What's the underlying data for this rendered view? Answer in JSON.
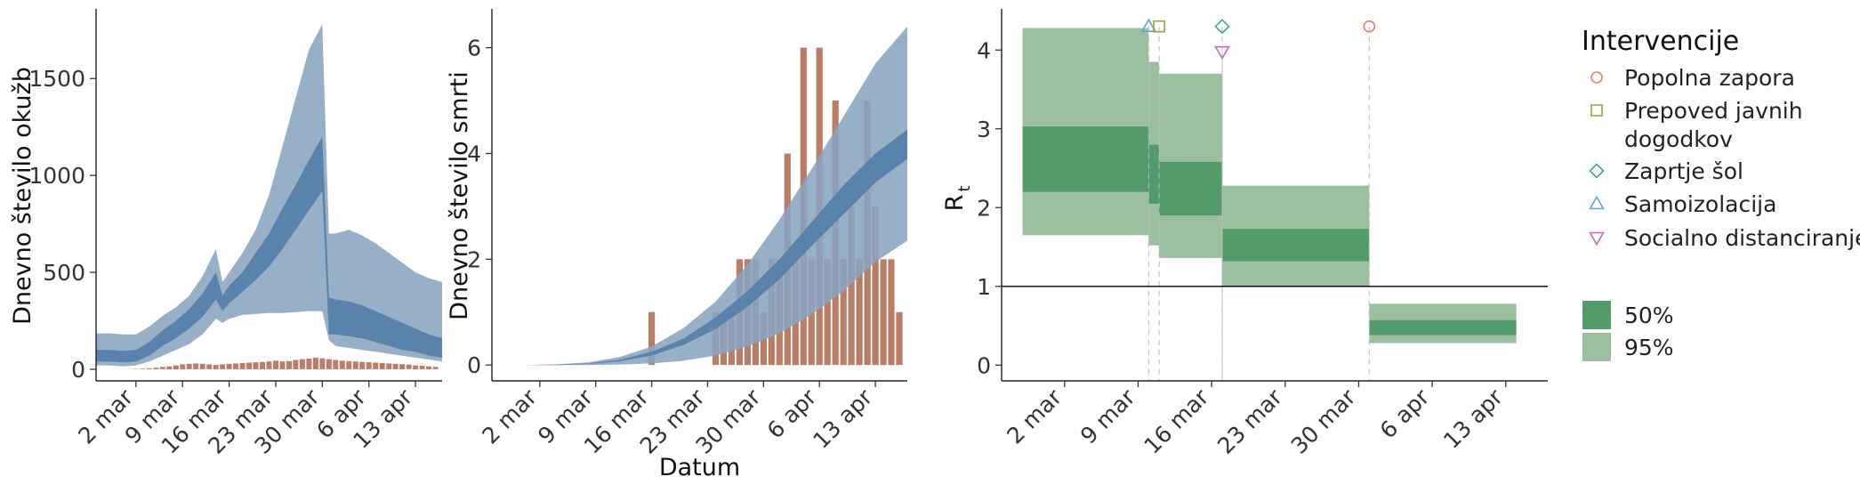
{
  "chart_data": [
    {
      "type": "area",
      "ylabel": "Dnevno število okužb",
      "xlabel": "",
      "xticks": [
        "2 mar",
        "9 mar",
        "16 mar",
        "23 mar",
        "30 mar",
        "6 apr",
        "13 apr"
      ],
      "yticks": [
        "0",
        "500",
        "1000",
        "1500"
      ],
      "ylim": [
        -60,
        1850
      ],
      "x_range_days": [
        -6,
        46
      ],
      "colors": {
        "band95": "#8aa4c0",
        "band50": "#527ea6",
        "bars": "#b97d68"
      },
      "series": [
        {
          "x": [
            -6,
            -4,
            -2,
            0,
            2,
            4,
            6,
            8,
            10,
            12,
            13,
            14,
            16,
            18,
            20,
            22,
            24,
            26,
            28,
            29,
            30,
            32,
            34,
            36,
            38,
            40,
            42,
            44,
            46
          ],
          "lower95": [
            20,
            20,
            15,
            20,
            40,
            70,
            100,
            130,
            180,
            260,
            240,
            260,
            280,
            285,
            290,
            290,
            295,
            300,
            300,
            150,
            120,
            110,
            100,
            90,
            80,
            70,
            60,
            50,
            40
          ],
          "upper95": [
            185,
            185,
            180,
            180,
            220,
            275,
            320,
            380,
            480,
            620,
            450,
            500,
            600,
            720,
            900,
            1150,
            1400,
            1650,
            1780,
            700,
            700,
            720,
            690,
            650,
            600,
            550,
            500,
            470,
            450
          ],
          "lower50": [
            40,
            40,
            35,
            40,
            70,
            120,
            160,
            210,
            270,
            360,
            300,
            340,
            400,
            460,
            530,
            620,
            720,
            820,
            920,
            180,
            180,
            170,
            160,
            140,
            120,
            100,
            90,
            70,
            60
          ],
          "upper50": [
            100,
            100,
            95,
            100,
            140,
            200,
            250,
            310,
            390,
            500,
            380,
            430,
            500,
            600,
            700,
            830,
            950,
            1080,
            1200,
            370,
            360,
            350,
            330,
            300,
            270,
            240,
            210,
            180,
            160
          ]
        }
      ],
      "bars": {
        "x": [
          0,
          1,
          2,
          3,
          4,
          5,
          6,
          7,
          8,
          9,
          10,
          11,
          12,
          13,
          14,
          15,
          16,
          17,
          18,
          19,
          20,
          21,
          22,
          23,
          24,
          25,
          26,
          27,
          28,
          29,
          30,
          31,
          32,
          33,
          34,
          35,
          36,
          37,
          38,
          39,
          40,
          41,
          42,
          43,
          44,
          45
        ],
        "values": [
          2,
          3,
          5,
          8,
          12,
          15,
          20,
          25,
          28,
          30,
          28,
          25,
          22,
          25,
          28,
          30,
          32,
          34,
          36,
          38,
          40,
          44,
          40,
          42,
          48,
          52,
          55,
          60,
          56,
          52,
          48,
          44,
          42,
          40,
          38,
          36,
          34,
          32,
          30,
          28,
          26,
          24,
          20,
          18,
          15,
          12
        ]
      }
    },
    {
      "type": "area",
      "ylabel": "Dnevno število smrti",
      "xlabel": "Datum",
      "xticks": [
        "2 mar",
        "9 mar",
        "16 mar",
        "23 mar",
        "30 mar",
        "6 apr",
        "13 apr"
      ],
      "yticks": [
        "0",
        "2",
        "4",
        "6"
      ],
      "ylim": [
        -0.3,
        6.7
      ],
      "x_range_days": [
        -6,
        46
      ],
      "series": [
        {
          "x": [
            -6,
            -2,
            2,
            6,
            10,
            14,
            18,
            22,
            26,
            30,
            34,
            38,
            42,
            46
          ],
          "lower95": [
            0,
            0,
            0,
            0,
            0.01,
            0.03,
            0.08,
            0.18,
            0.35,
            0.6,
            0.95,
            1.4,
            1.95,
            2.35
          ],
          "upper95": [
            0,
            0,
            0.01,
            0.05,
            0.15,
            0.35,
            0.7,
            1.2,
            1.9,
            2.75,
            3.7,
            4.7,
            5.7,
            6.4
          ],
          "lower50": [
            0,
            0,
            0,
            0.02,
            0.07,
            0.18,
            0.38,
            0.68,
            1.1,
            1.62,
            2.25,
            2.85,
            3.45,
            3.9
          ],
          "upper50": [
            0,
            0,
            0.01,
            0.03,
            0.1,
            0.25,
            0.5,
            0.9,
            1.4,
            2.0,
            2.7,
            3.4,
            4.0,
            4.45
          ]
        }
      ],
      "bars": {
        "x": [
          14,
          22,
          23,
          24,
          25,
          26,
          27,
          28,
          29,
          30,
          31,
          32,
          33,
          34,
          35,
          36,
          37,
          38,
          39,
          40,
          41,
          42,
          43,
          44,
          45
        ],
        "values": [
          1,
          1,
          1,
          1,
          2,
          2,
          2,
          1,
          2,
          2,
          4,
          2,
          6,
          2,
          6,
          2,
          5,
          2,
          3,
          2,
          5,
          3,
          2,
          2,
          1
        ]
      }
    },
    {
      "type": "area",
      "ylabel": "R",
      "ylabel_sub": "t",
      "xlabel": "",
      "xticks": [
        "2 mar",
        "9 mar",
        "16 mar",
        "23 mar",
        "30 mar",
        "6 apr",
        "13 apr"
      ],
      "yticks": [
        "0",
        "1",
        "2",
        "3",
        "4"
      ],
      "ylim": [
        -0.2,
        4.5
      ],
      "x_range_days": [
        -6,
        46
      ],
      "reference_line": 1,
      "colors": {
        "band95": "#9bbf9f",
        "band50": "#549b6c",
        "reference": "#000000"
      },
      "segments": [
        {
          "x0": -4,
          "x1": 8,
          "lower95": 1.65,
          "upper95": 4.28,
          "lower50": 2.2,
          "upper50": 3.03
        },
        {
          "x0": 8,
          "x1": 9,
          "lower95": 1.52,
          "upper95": 3.85,
          "lower50": 2.05,
          "upper50": 2.8
        },
        {
          "x0": 9,
          "x1": 15,
          "lower95": 1.36,
          "upper95": 3.7,
          "lower50": 1.9,
          "upper50": 2.58
        },
        {
          "x0": 15,
          "x1": 29,
          "lower95": 1.0,
          "upper95": 2.28,
          "lower50": 1.32,
          "upper50": 1.73
        },
        {
          "x0": 29,
          "x1": 43,
          "lower95": 0.28,
          "upper95": 0.78,
          "lower50": 0.38,
          "upper50": 0.57
        }
      ],
      "interventions": [
        {
          "name": "Samoizolacija",
          "day": 8,
          "y": 4.3,
          "marker": "triangle-up",
          "color": "#5aa6d8"
        },
        {
          "name": "Prepoved javnih dogodkov",
          "day": 9,
          "y": 4.3,
          "marker": "square",
          "color": "#9aa13a"
        },
        {
          "name": "Zaprtje šol",
          "day": 15,
          "y": 4.3,
          "marker": "diamond",
          "color": "#3aae7a"
        },
        {
          "name": "Socialno distanciranje",
          "day": 15,
          "y": 3.98,
          "marker": "triangle-down",
          "color": "#c867c2"
        },
        {
          "name": "Popolna zapora",
          "day": 29,
          "y": 4.3,
          "marker": "circle",
          "color": "#e8806c"
        }
      ]
    }
  ],
  "legend": {
    "title": "Intervencije",
    "items": [
      {
        "label": "Popolna zapora",
        "marker": "circle",
        "color": "#e8806c"
      },
      {
        "label": "Prepoved javnih dogodkov",
        "marker": "square",
        "color": "#9aa13a"
      },
      {
        "label": "Zaprtje šol",
        "marker": "diamond",
        "color": "#3aae7a"
      },
      {
        "label": "Samoizolacija",
        "marker": "triangle-up",
        "color": "#5aa6d8"
      },
      {
        "label": "Socialno distanciranje",
        "marker": "triangle-down",
        "color": "#c867c2"
      }
    ],
    "bands": [
      {
        "label": "50%",
        "color": "#549b6c"
      },
      {
        "label": "95%",
        "color": "#9bbf9f"
      }
    ]
  }
}
